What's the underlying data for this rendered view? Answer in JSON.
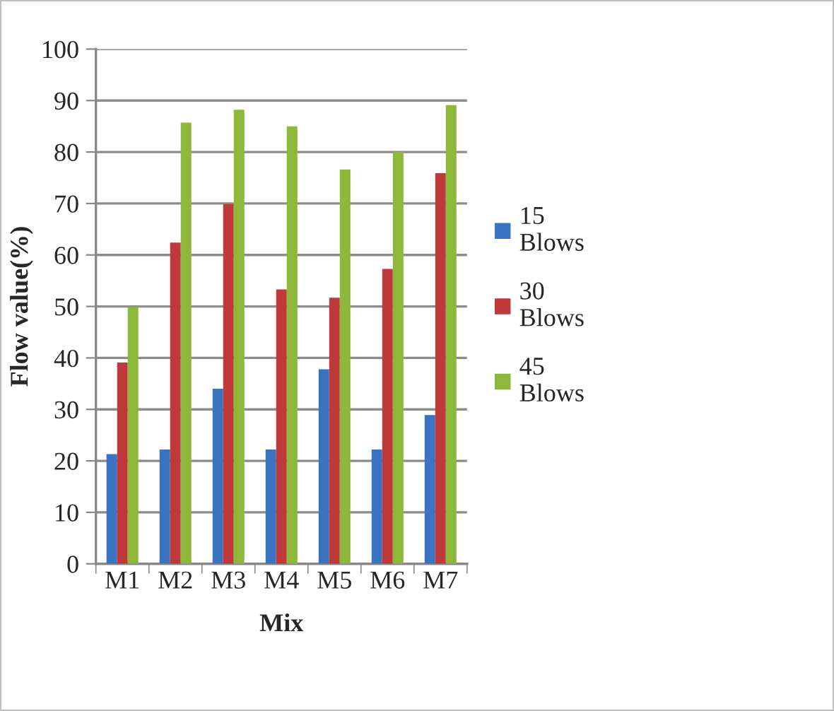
{
  "chart_data": {
    "type": "bar",
    "xlabel": "Mix",
    "ylabel": "Flow value(%)",
    "categories": [
      "M1",
      "M2",
      "M3",
      "M4",
      "M5",
      "M6",
      "M7"
    ],
    "series": [
      {
        "name": "15 Blows",
        "color": "#3a73c0",
        "values": [
          21.3,
          22.2,
          34.0,
          22.2,
          37.8,
          22.2,
          28.9
        ]
      },
      {
        "name": "30 Blows",
        "color": "#c0393a",
        "values": [
          39.1,
          62.4,
          69.9,
          53.3,
          51.7,
          57.3,
          75.9
        ]
      },
      {
        "name": "45 Blows",
        "color": "#8db83a",
        "values": [
          49.9,
          85.7,
          88.2,
          85.0,
          76.6,
          80.0,
          89.1
        ]
      }
    ],
    "ylim": [
      0,
      100
    ],
    "yticks": [
      0,
      10,
      20,
      30,
      40,
      50,
      60,
      70,
      80,
      90,
      100
    ],
    "grid": "y",
    "legend": "right"
  }
}
